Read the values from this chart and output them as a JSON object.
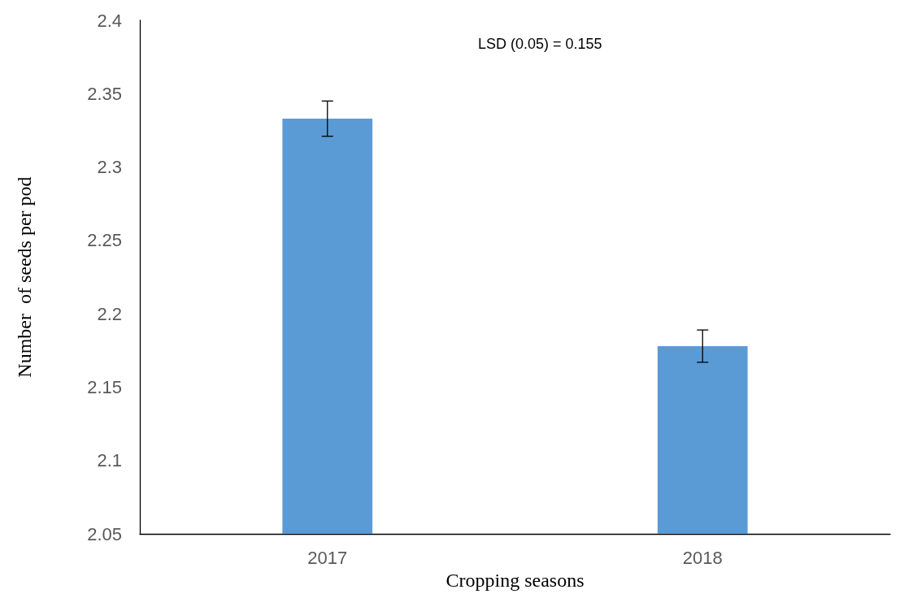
{
  "chart_data": {
    "type": "bar",
    "xlabel": "Cropping seasons",
    "ylabel": "Number  of seeds per pod",
    "annotations": [
      "LSD (0.05) = 0.155"
    ],
    "categories": [
      "2017",
      "2018"
    ],
    "values": [
      2.333,
      2.178
    ],
    "errors": [
      0.012,
      0.011
    ],
    "color": "#5b9bd5",
    "ylim": [
      2.05,
      2.4
    ],
    "yticks": [
      2.05,
      2.1,
      2.15,
      2.2,
      2.25,
      2.3,
      2.35,
      2.4
    ]
  }
}
